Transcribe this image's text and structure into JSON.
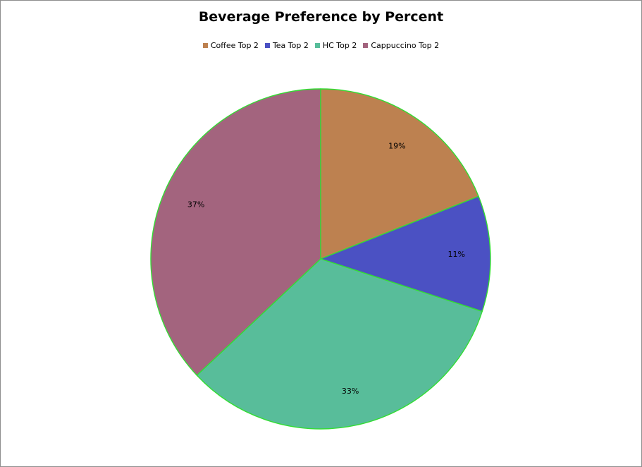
{
  "chart_data": {
    "type": "pie",
    "title": "Beverage Preference by Percent",
    "legend_position": "top",
    "slices": [
      {
        "name": "Coffee Top 2",
        "value": 19,
        "label": "19%",
        "color": "#bd8150"
      },
      {
        "name": "Tea Top 2",
        "value": 11,
        "label": "11%",
        "color": "#4b51c3"
      },
      {
        "name": "HC Top 2",
        "value": 33,
        "label": "33%",
        "color": "#58bd9a"
      },
      {
        "name": "Cappuccino Top 2",
        "value": 37,
        "label": "37%",
        "color": "#a3647e"
      }
    ],
    "slice_border_color": "#33dd33"
  }
}
